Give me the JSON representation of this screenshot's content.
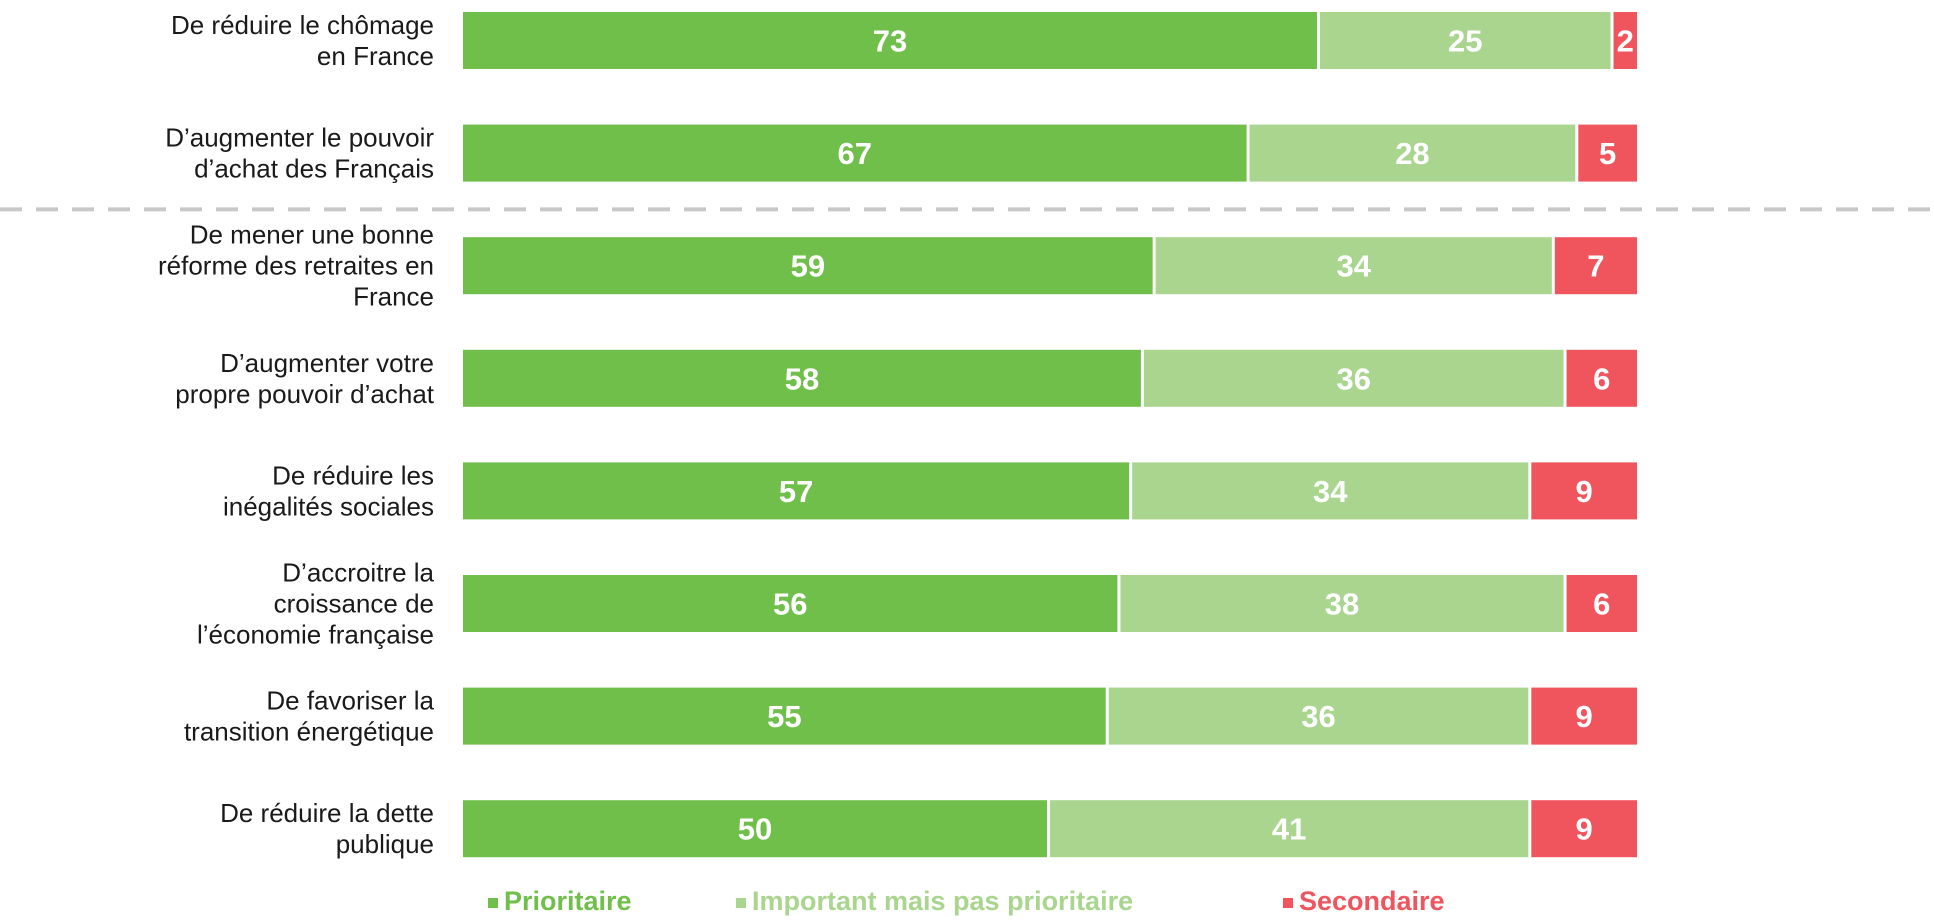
{
  "chart_data": {
    "type": "bar",
    "orientation": "horizontal",
    "stacked": true,
    "categories": [
      [
        "De réduire le chômage",
        "en France"
      ],
      [
        "D’augmenter le pouvoir",
        "d’achat des Français"
      ],
      [
        "De mener une bonne",
        "réforme des retraites en",
        "France"
      ],
      [
        "D’augmenter votre",
        "propre pouvoir d’achat"
      ],
      [
        "De réduire les",
        "inégalités sociales"
      ],
      [
        "D’accroitre la",
        "croissance de",
        "l’économie française"
      ],
      [
        "De favoriser la",
        "transition énergétique"
      ],
      [
        "De réduire la dette",
        "publique"
      ]
    ],
    "series": [
      {
        "name": "Prioritaire",
        "color": "#70bf4b",
        "values": [
          73,
          67,
          59,
          58,
          57,
          56,
          55,
          50
        ]
      },
      {
        "name": "Important mais pas prioritaire",
        "color": "#a9d58f",
        "values": [
          25,
          28,
          34,
          36,
          34,
          38,
          36,
          41
        ]
      },
      {
        "name": "Secondaire",
        "color": "#f0555e",
        "values": [
          2,
          5,
          7,
          6,
          9,
          6,
          9,
          9
        ]
      }
    ],
    "xlim": [
      0,
      100
    ],
    "grid": false,
    "legend": "bottom",
    "separator_after_category": 1
  }
}
